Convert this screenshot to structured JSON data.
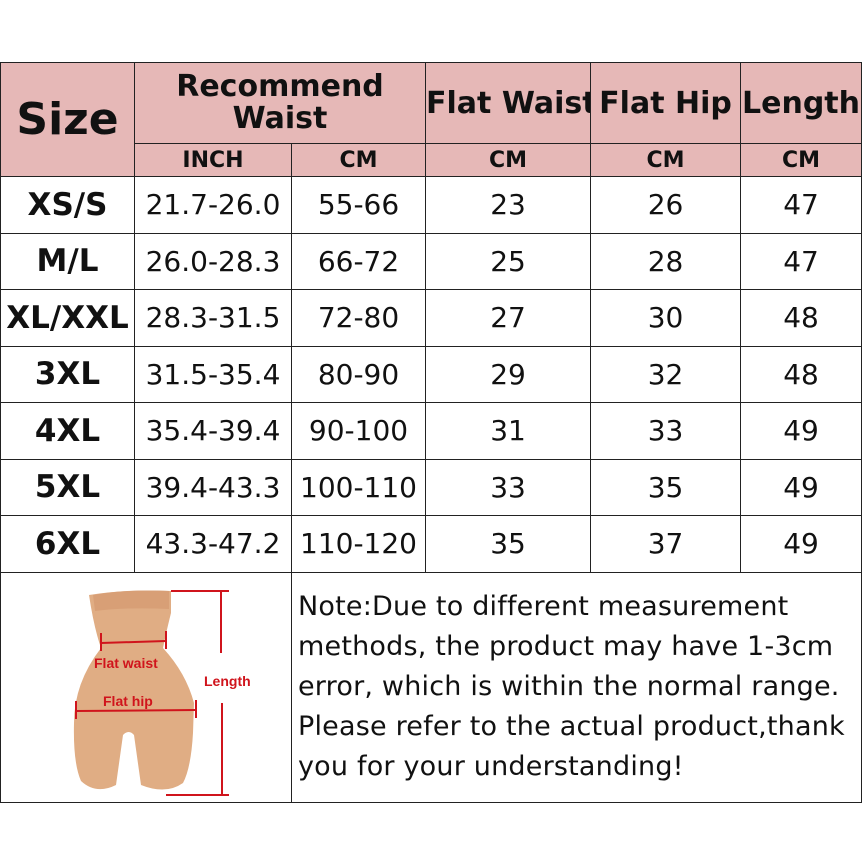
{
  "header": {
    "size": "Size",
    "recommend_waist": "Recommend Waist",
    "flat_waist": "Flat Waist",
    "flat_hip": "Flat Hip",
    "length": "Length",
    "units": [
      "INCH",
      "CM",
      "CM",
      "CM",
      "CM"
    ]
  },
  "rows": [
    {
      "size": "XS/S",
      "inch": "21.7-26.0",
      "cm": "55-66",
      "flat_waist": "23",
      "flat_hip": "26",
      "length": "47"
    },
    {
      "size": "M/L",
      "inch": "26.0-28.3",
      "cm": "66-72",
      "flat_waist": "25",
      "flat_hip": "28",
      "length": "47"
    },
    {
      "size": "XL/XXL",
      "inch": "28.3-31.5",
      "cm": "72-80",
      "flat_waist": "27",
      "flat_hip": "30",
      "length": "48"
    },
    {
      "size": "3XL",
      "inch": "31.5-35.4",
      "cm": "80-90",
      "flat_waist": "29",
      "flat_hip": "32",
      "length": "48"
    },
    {
      "size": "4XL",
      "inch": "35.4-39.4",
      "cm": "90-100",
      "flat_waist": "31",
      "flat_hip": "33",
      "length": "49"
    },
    {
      "size": "5XL",
      "inch": "39.4-43.3",
      "cm": "100-110",
      "flat_waist": "33",
      "flat_hip": "35",
      "length": "49"
    },
    {
      "size": "6XL",
      "inch": "43.3-47.2",
      "cm": "110-120",
      "flat_waist": "35",
      "flat_hip": "37",
      "length": "49"
    }
  ],
  "diagram": {
    "flat_waist": "Flat waist",
    "flat_hip": "Flat hip",
    "length": "Length"
  },
  "note": "Note:Due to different measurement methods, the product may have 1-3cm error, which is within the normal range. Please refer to the actual product,thank you for your understanding!",
  "colors": {
    "header_bg": "#e6b8b7",
    "measure_red": "#d0141c",
    "skin": "#e0ad84"
  }
}
